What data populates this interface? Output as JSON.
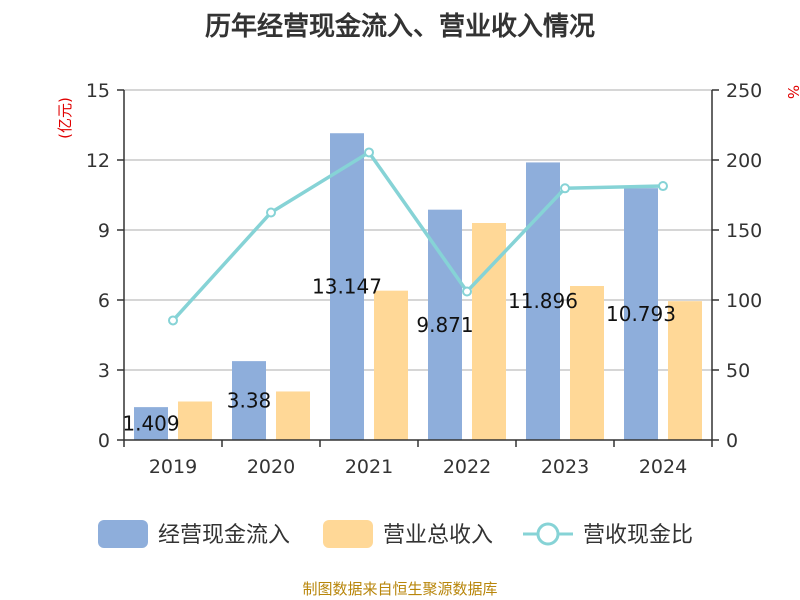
{
  "title": "历年经营现金流入、营业收入情况",
  "footer": "制图数据来自恒生聚源数据库",
  "chart_data": {
    "type": "bar",
    "categories": [
      "2019",
      "2020",
      "2021",
      "2022",
      "2023",
      "2024"
    ],
    "series": [
      {
        "name": "经营现金流入",
        "kind": "bar",
        "axis": "left",
        "color": "#8eaedb",
        "values": [
          1.409,
          3.38,
          13.147,
          9.871,
          11.896,
          10.793
        ],
        "labels": [
          "1.409",
          "3.38",
          "13.147",
          "9.871",
          "11.896",
          "10.793"
        ]
      },
      {
        "name": "营业总收入",
        "kind": "bar",
        "axis": "left",
        "color": "#ffd897",
        "values": [
          1.65,
          2.08,
          6.4,
          9.3,
          6.6,
          5.95
        ]
      },
      {
        "name": "营收现金比",
        "kind": "line",
        "axis": "right",
        "color": "#86d3d6",
        "values": [
          85.4,
          162.5,
          205.4,
          106.1,
          179.8,
          181.4
        ]
      }
    ],
    "ylabel_left": "(亿元)",
    "ylabel_right": "%",
    "ylim_left": [
      0,
      15
    ],
    "yticks_left": [
      0,
      3,
      6,
      9,
      12,
      15
    ],
    "ylim_right": [
      0,
      250
    ],
    "yticks_right": [
      0,
      50,
      100,
      150,
      200,
      250
    ],
    "grid": true,
    "legend_position": "bottom"
  }
}
